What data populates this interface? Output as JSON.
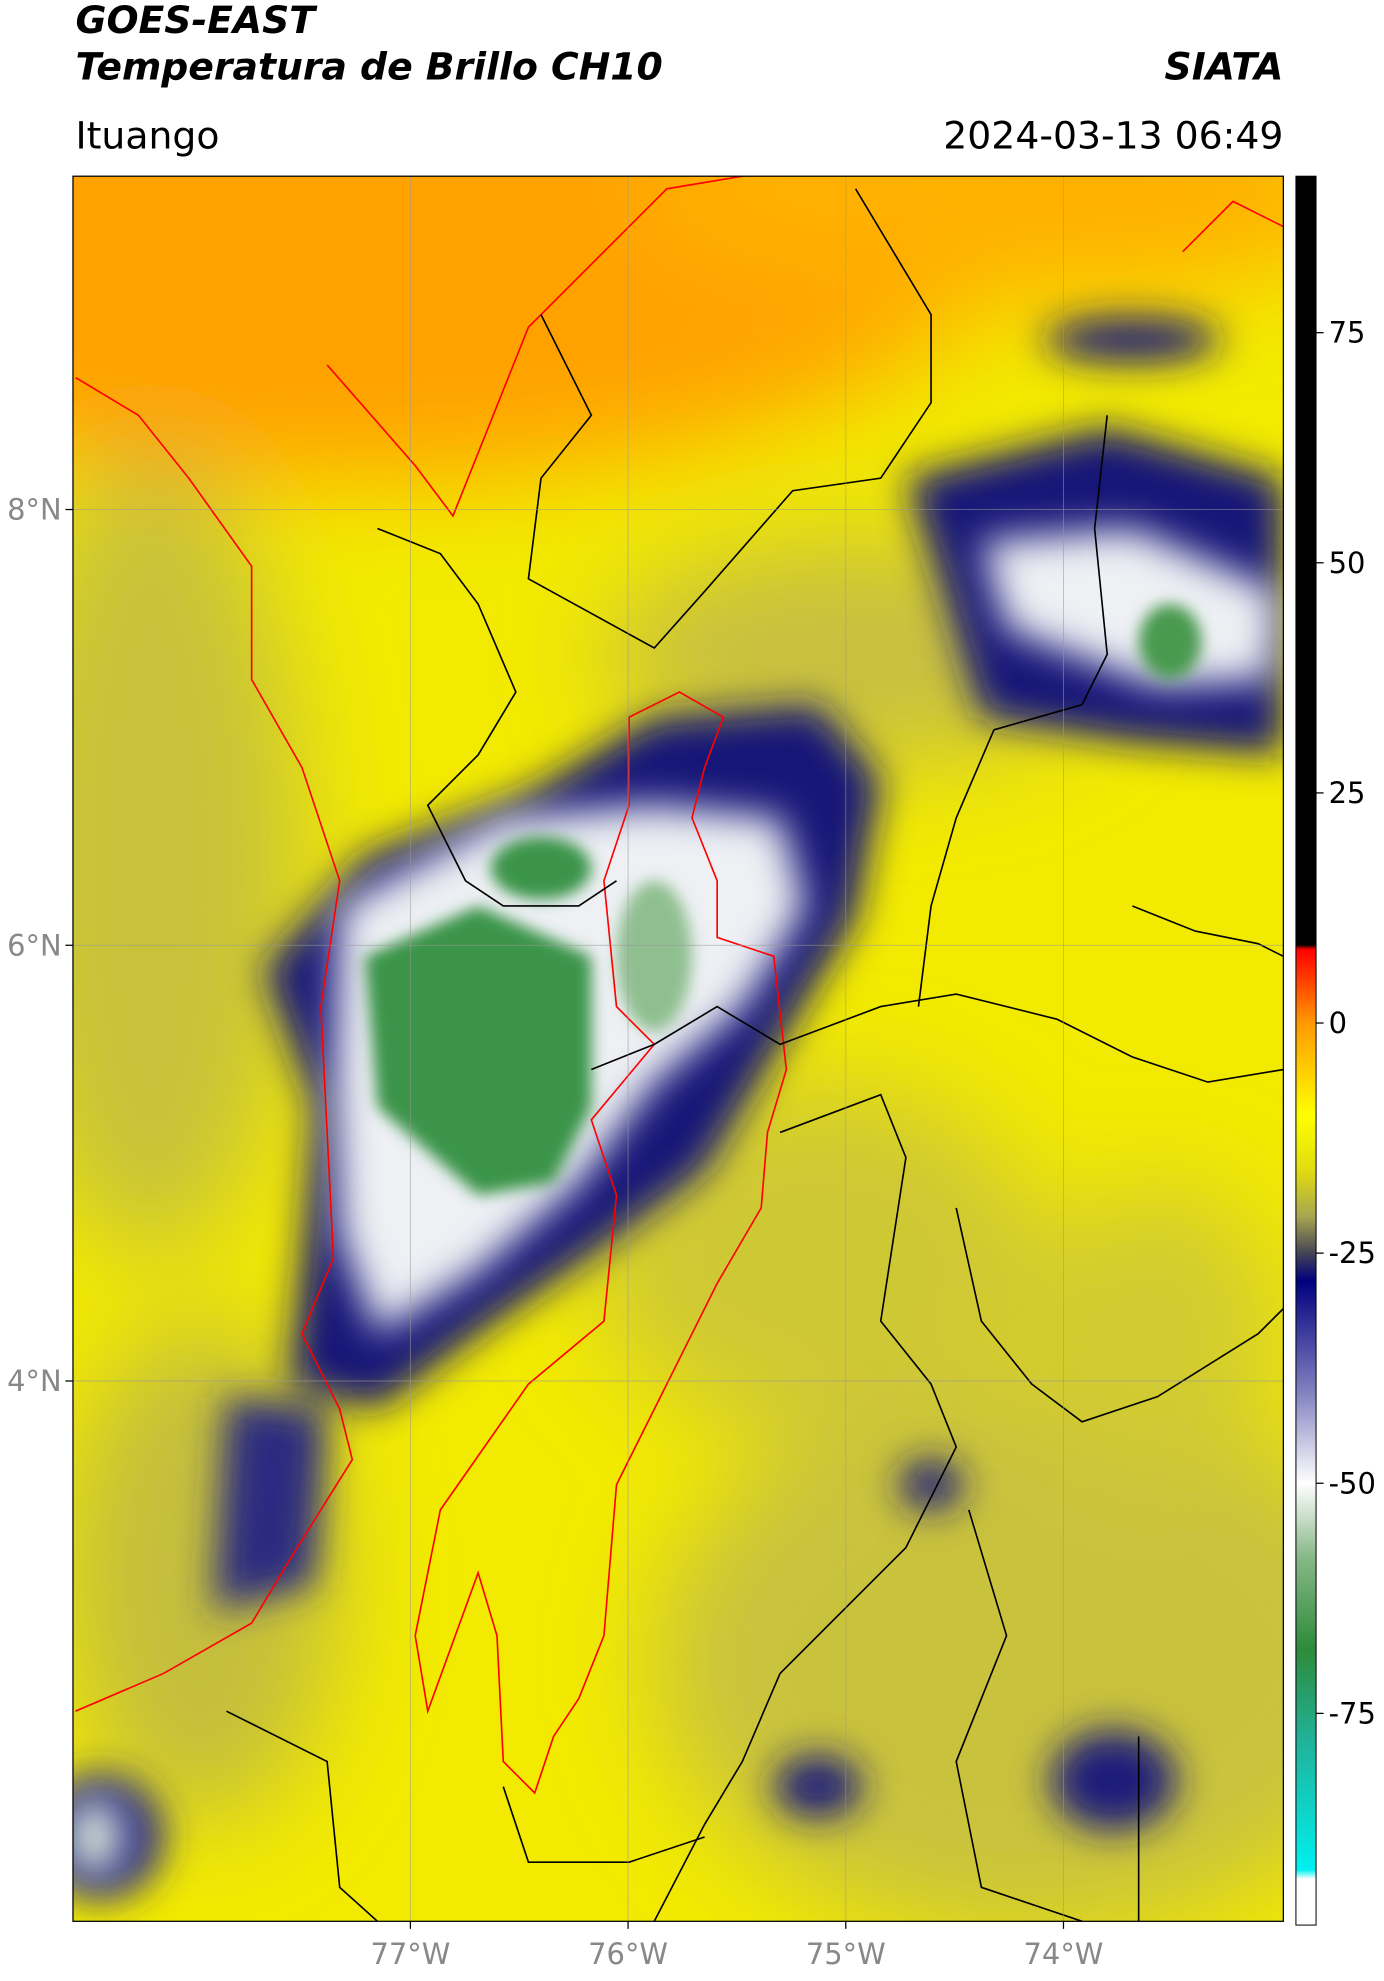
{
  "header": {
    "title": "GOES-EAST",
    "subtitle": "Temperatura de Brillo CH10",
    "source": "SIATA",
    "location": "Ituango",
    "timestamp": "2024-03-13 06:49"
  },
  "map": {
    "lat_range": [
      1.52,
      9.53
    ],
    "lon_range": [
      -78.55,
      -72.99
    ],
    "grid": true,
    "lat_ticks": [
      {
        "value": 8,
        "label": "8°N"
      },
      {
        "value": 6,
        "label": "6°N"
      },
      {
        "value": 4,
        "label": "4°N"
      }
    ],
    "lon_ticks": [
      {
        "value": -77,
        "label": "77°W"
      },
      {
        "value": -76,
        "label": "76°W"
      },
      {
        "value": -75,
        "label": "75°W"
      },
      {
        "value": -74,
        "label": "74°W"
      }
    ]
  },
  "colorbar": {
    "range": [
      -98,
      92
    ],
    "ticks": [
      75,
      50,
      25,
      0,
      -25,
      -50,
      -75
    ],
    "colormap": [
      {
        "value": 92,
        "color": "#000000"
      },
      {
        "value": 8.5,
        "color": "#000000"
      },
      {
        "value": 8,
        "color": "#ff0000"
      },
      {
        "value": 0,
        "color": "#ff9900"
      },
      {
        "value": -10,
        "color": "#ffff00"
      },
      {
        "value": -16,
        "color": "#e0dc10"
      },
      {
        "value": -21,
        "color": "#a8a650"
      },
      {
        "value": -25,
        "color": "#444455"
      },
      {
        "value": -28,
        "color": "#00007f"
      },
      {
        "value": -40,
        "color": "#8080c0"
      },
      {
        "value": -50,
        "color": "#ffffff"
      },
      {
        "value": -58,
        "color": "#88b888"
      },
      {
        "value": -68,
        "color": "#2e8b3a"
      },
      {
        "value": -78,
        "color": "#20b29a"
      },
      {
        "value": -92,
        "color": "#00f0f0"
      },
      {
        "value": -93,
        "color": "#ffffff"
      },
      {
        "value": -98,
        "color": "#ffffff"
      }
    ]
  }
}
